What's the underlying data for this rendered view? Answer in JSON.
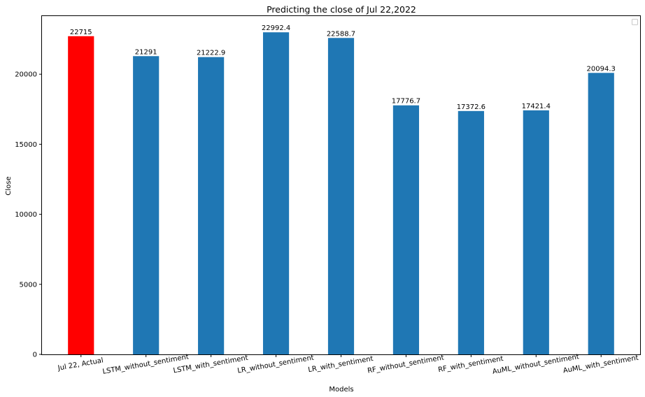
{
  "chart_data": {
    "type": "bar",
    "title": "Predicting the close of Jul 22,2022",
    "xlabel": "Models",
    "ylabel": "Close",
    "categories": [
      "Jul 22, Actual",
      "LSTM_without_sentiment",
      "LSTM_with_sentiment",
      "LR_without_sentiment",
      "LR_with_sentiment",
      "RF_without_sentiment",
      "RF_with_sentiment",
      "AuML_without_sentiment",
      "AuML_with_sentiment"
    ],
    "values": [
      22715,
      21291,
      21222.9,
      22992.4,
      22588.7,
      17776.7,
      17372.6,
      17421.4,
      20094.3
    ],
    "data_labels": [
      "22715",
      "21291",
      "21222.9",
      "22992.4",
      "22588.7",
      "17776.7",
      "17372.6",
      "17421.4",
      "20094.3"
    ],
    "bar_colors": [
      "#ff0000",
      "#1f77b4",
      "#1f77b4",
      "#1f77b4",
      "#1f77b4",
      "#1f77b4",
      "#1f77b4",
      "#1f77b4",
      "#1f77b4"
    ],
    "ylim": [
      0,
      24200
    ],
    "yticks": [
      0,
      5000,
      10000,
      15000,
      20000
    ],
    "ytick_labels": [
      "0",
      "5000",
      "10000",
      "15000",
      "20000"
    ],
    "grid": false,
    "legend": {
      "placement": "top-right",
      "entries": []
    }
  }
}
